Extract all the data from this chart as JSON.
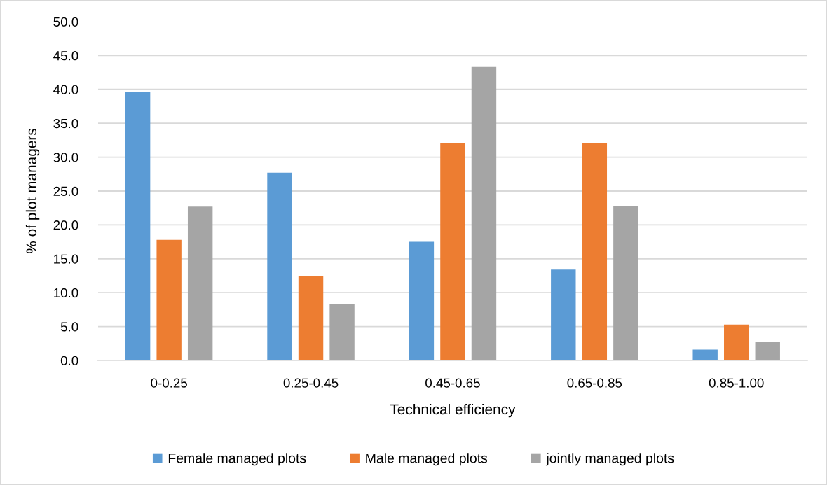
{
  "chart_data": {
    "type": "bar",
    "xlabel": "Technical efficiency",
    "ylabel": "% of plot managers",
    "categories": [
      "0-0.25",
      "0.25-0.45",
      "0.45-0.65",
      "0.65-0.85",
      "0.85-1.00"
    ],
    "series": [
      {
        "name": "Female managed plots",
        "color": "#5b9bd5",
        "values": [
          39.6,
          27.7,
          17.5,
          13.4,
          1.6
        ]
      },
      {
        "name": "Male managed plots",
        "color": "#ed7d31",
        "values": [
          17.8,
          12.5,
          32.1,
          32.1,
          5.3
        ]
      },
      {
        "name": "jointly managed plots",
        "color": "#a5a5a5",
        "values": [
          22.7,
          8.3,
          43.3,
          22.8,
          2.7
        ]
      }
    ],
    "ylim": [
      0,
      50
    ],
    "yticks": [
      {
        "value": 0,
        "label": "0.0"
      },
      {
        "value": 5,
        "label": "5.0"
      },
      {
        "value": 10,
        "label": "10.0"
      },
      {
        "value": 15,
        "label": "15.0"
      },
      {
        "value": 20,
        "label": "20.0"
      },
      {
        "value": 25,
        "label": "25.0"
      },
      {
        "value": 30,
        "label": "30.0"
      },
      {
        "value": 35,
        "label": "35.0"
      },
      {
        "value": 40,
        "label": "40.0"
      },
      {
        "value": 45,
        "label": "45.0"
      },
      {
        "value": 50,
        "label": "50.0"
      }
    ],
    "grid": "y",
    "legend": "bottom"
  }
}
